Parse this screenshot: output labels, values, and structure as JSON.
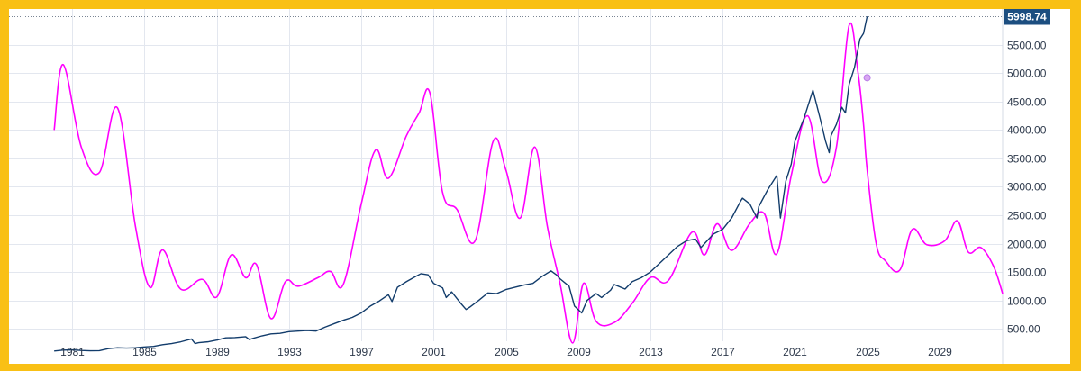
{
  "chart_data": {
    "type": "line",
    "title": "",
    "xlabel": "",
    "ylabel": "",
    "xlim": [
      1977.5,
      2032.5
    ],
    "ylim": [
      280,
      6130
    ],
    "x_ticks": [
      "1981",
      "1985",
      "1989",
      "1993",
      "1997",
      "2001",
      "2005",
      "2009",
      "2013",
      "2017",
      "2021",
      "2025",
      "2029"
    ],
    "y_ticks": [
      "500.00",
      "1000.00",
      "1500.00",
      "2000.00",
      "2500.00",
      "3000.00",
      "3500.00",
      "4000.00",
      "4500.00",
      "5000.00",
      "5500.00"
    ],
    "grid": true,
    "last_value": "5998.74",
    "colors": {
      "index_line": "#123c6b",
      "projection_line": "#ff00ff",
      "last_value_badge": "#1c4e80",
      "marker_fill": "#d9a7f2",
      "marker_stroke": "#b77ce6",
      "grid": "#e3e7ef",
      "frame": "#f9c015"
    },
    "series": [
      {
        "key": "index",
        "x": [
          1980.0,
          1980.5,
          1981.0,
          1981.5,
          1982.0,
          1982.5,
          1983.0,
          1983.5,
          1984.0,
          1984.5,
          1985.0,
          1985.5,
          1986.0,
          1986.5,
          1987.0,
          1987.6,
          1987.8,
          1988.0,
          1988.5,
          1989.0,
          1989.5,
          1990.0,
          1990.6,
          1990.8,
          1991.0,
          1991.5,
          1992.0,
          1992.5,
          1993.0,
          1993.5,
          1994.0,
          1994.5,
          1995.0,
          1995.5,
          1996.0,
          1996.5,
          1997.0,
          1997.5,
          1998.0,
          1998.5,
          1998.7,
          1999.0,
          1999.5,
          2000.0,
          2000.3,
          2000.7,
          2001.0,
          2001.5,
          2001.7,
          2002.0,
          2002.5,
          2002.8,
          2003.0,
          2003.5,
          2004.0,
          2004.5,
          2005.0,
          2005.5,
          2006.0,
          2006.5,
          2007.0,
          2007.5,
          2007.8,
          2008.0,
          2008.5,
          2008.8,
          2009.2,
          2009.5,
          2010.0,
          2010.3,
          2010.8,
          2011.0,
          2011.6,
          2012.0,
          2012.5,
          2013.0,
          2013.5,
          2014.0,
          2014.5,
          2015.0,
          2015.5,
          2015.8,
          2016.0,
          2016.5,
          2017.0,
          2017.5,
          2018.0,
          2018.1,
          2018.5,
          2018.9,
          2019.0,
          2019.5,
          2020.0,
          2020.2,
          2020.5,
          2020.8,
          2021.0,
          2021.5,
          2022.0,
          2022.4,
          2022.7,
          2022.9,
          2023.0,
          2023.3,
          2023.6,
          2023.8,
          2024.0,
          2024.3,
          2024.6,
          2024.8,
          2025.0
        ],
        "values": [
          108,
          125,
          128,
          118,
          113,
          115,
          150,
          165,
          160,
          165,
          180,
          190,
          220,
          240,
          270,
          320,
          240,
          255,
          270,
          300,
          340,
          345,
          360,
          310,
          330,
          375,
          410,
          420,
          450,
          460,
          470,
          460,
          530,
          590,
          650,
          700,
          780,
          900,
          990,
          1100,
          980,
          1230,
          1330,
          1420,
          1470,
          1450,
          1300,
          1220,
          1050,
          1150,
          950,
          840,
          880,
          1000,
          1130,
          1120,
          1190,
          1230,
          1270,
          1300,
          1420,
          1520,
          1450,
          1380,
          1250,
          900,
          780,
          1000,
          1120,
          1050,
          1180,
          1280,
          1200,
          1330,
          1400,
          1500,
          1650,
          1800,
          1950,
          2050,
          2080,
          1930,
          2000,
          2170,
          2250,
          2450,
          2750,
          2800,
          2700,
          2450,
          2650,
          2950,
          3200,
          2450,
          3100,
          3400,
          3800,
          4200,
          4700,
          4200,
          3800,
          3600,
          3900,
          4100,
          4400,
          4300,
          4800,
          5100,
          5600,
          5700,
          5999
        ]
      },
      {
        "key": "projection",
        "x": [
          1980.0,
          1980.5,
          1981.5,
          1982.5,
          1983.5,
          1984.5,
          1985.3,
          1986.0,
          1987.0,
          1988.2,
          1989.0,
          1989.8,
          1990.6,
          1991.2,
          1992.0,
          1992.8,
          1993.5,
          1994.6,
          1995.3,
          1996.0,
          1997.0,
          1997.8,
          1998.5,
          1999.5,
          2000.2,
          2000.8,
          2001.5,
          2002.3,
          2003.3,
          2004.3,
          2005.0,
          2005.8,
          2006.6,
          2007.3,
          2008.0,
          2008.7,
          2009.3,
          2010.0,
          2011.0,
          2012.0,
          2013.0,
          2014.0,
          2015.3,
          2016.0,
          2016.7,
          2017.5,
          2018.5,
          2019.3,
          2020.0,
          2020.8,
          2021.7,
          2022.5,
          2023.3,
          2024.0,
          2024.5,
          2024.8,
          2025.0,
          2025.5,
          2026.0,
          2026.8,
          2027.5,
          2028.3,
          2029.3,
          2030.0,
          2030.6,
          2031.3,
          2032.0,
          2032.5
        ],
        "values": [
          4000,
          5150,
          3700,
          3250,
          4390,
          2300,
          1230,
          1890,
          1200,
          1370,
          1060,
          1800,
          1400,
          1630,
          680,
          1330,
          1250,
          1400,
          1510,
          1280,
          2700,
          3650,
          3150,
          3900,
          4300,
          4650,
          2900,
          2600,
          2050,
          3800,
          3300,
          2450,
          3700,
          2300,
          1300,
          250,
          1300,
          630,
          610,
          950,
          1400,
          1350,
          2200,
          1800,
          2350,
          1880,
          2350,
          2530,
          1820,
          3200,
          4250,
          3100,
          3700,
          5840,
          5000,
          4100,
          3300,
          2000,
          1700,
          1530,
          2250,
          1980,
          2050,
          2400,
          1850,
          1930,
          1600,
          1120
        ]
      }
    ],
    "marker": {
      "x": 2025.0,
      "value": 4920
    }
  }
}
